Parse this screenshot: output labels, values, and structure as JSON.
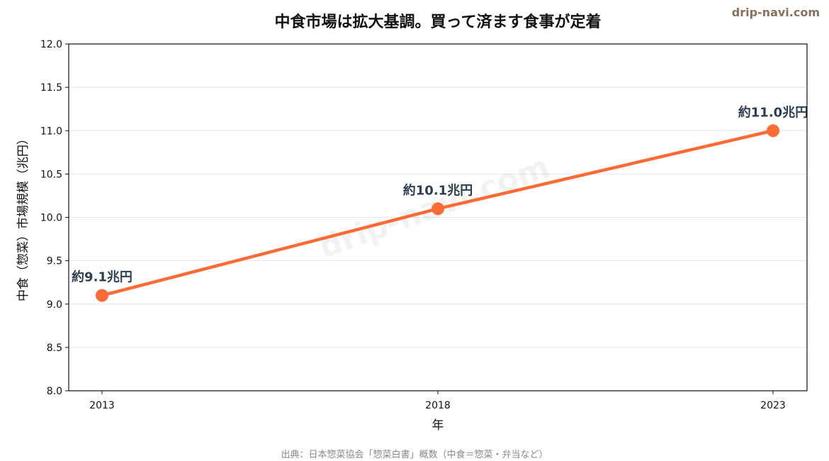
{
  "chart_data": {
    "type": "line",
    "title": "中食市場は拡大基調。買って済ます食事が定着",
    "xlabel": "年",
    "ylabel": "中食（惣菜）市場規模（兆円）",
    "x": [
      "2013",
      "2018",
      "2023"
    ],
    "series": [
      {
        "values": [
          9.1,
          10.1,
          11.0
        ]
      }
    ],
    "data_labels": [
      "約9.1兆円",
      "約10.1兆円",
      "約11.0兆円"
    ],
    "ylim": [
      8.0,
      12.0
    ],
    "yticks": [
      "8.0",
      "8.5",
      "9.0",
      "9.5",
      "10.0",
      "10.5",
      "11.0",
      "11.5",
      "12.0"
    ],
    "grid": "horizontal",
    "legend": "none",
    "source_note": "出典：日本惣菜協会「惣菜白書」概数（中食＝惣菜・弁当など）"
  },
  "branding": {
    "site": "drip-navi.com",
    "watermark": "drip-navi.com"
  },
  "colors": {
    "line": "#ff6b35",
    "data_label": "#2c3e50",
    "brand": "#8b6f5a",
    "grid": "#e6e6e6"
  }
}
